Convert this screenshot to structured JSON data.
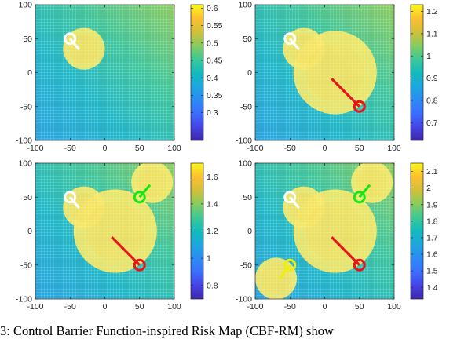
{
  "figure": {
    "caption": "3:  Control Barrier Function-inspired Risk Map (CBF-RM) show"
  },
  "colors": {
    "agent_white": "#ffffff",
    "agent_red": "#e8141b",
    "agent_green": "#19e619",
    "agent_yellow": "#eeee10"
  },
  "chart_data": [
    {
      "type": "heatmap",
      "xlim": [
        -100,
        100
      ],
      "ylim": [
        -100,
        100
      ],
      "xticks": [
        -100,
        -50,
        0,
        50,
        100
      ],
      "yticks": [
        -100,
        -50,
        0,
        50,
        100
      ],
      "colorbar": {
        "min": 0.22,
        "max": 0.61,
        "ticks": [
          0.3,
          0.35,
          0.4,
          0.45,
          0.5,
          0.55,
          0.6
        ]
      },
      "agents": [
        {
          "color": "white",
          "x": -50,
          "y": 50,
          "heading_x": -37,
          "heading_y": 34,
          "influence_x": -30,
          "influence_y": 35,
          "influence_r": 30
        }
      ],
      "grid": true
    },
    {
      "type": "heatmap",
      "xlim": [
        -100,
        100
      ],
      "ylim": [
        -100,
        100
      ],
      "xticks": [
        -100,
        -50,
        0,
        50,
        100
      ],
      "yticks": [
        -100,
        -50,
        0,
        50,
        100
      ],
      "colorbar": {
        "min": 0.62,
        "max": 1.23,
        "ticks": [
          0.7,
          0.8,
          0.9,
          1,
          1.1,
          1.2
        ]
      },
      "agents": [
        {
          "color": "white",
          "x": -50,
          "y": 50,
          "heading_x": -37,
          "heading_y": 34,
          "influence_x": -30,
          "influence_y": 35,
          "influence_r": 30
        },
        {
          "color": "red",
          "x": 50,
          "y": -50,
          "heading_x": 10,
          "heading_y": -9,
          "influence_x": 15,
          "influence_y": 0,
          "influence_r": 60
        }
      ],
      "grid": true
    },
    {
      "type": "heatmap",
      "xlim": [
        -100,
        100
      ],
      "ylim": [
        -100,
        100
      ],
      "xticks": [
        -100,
        -50,
        0,
        50,
        100
      ],
      "yticks": [
        -100,
        -50,
        0,
        50,
        100
      ],
      "colorbar": {
        "min": 0.7,
        "max": 1.7,
        "ticks": [
          0.8,
          1,
          1.2,
          1.4,
          1.6
        ]
      },
      "agents": [
        {
          "color": "white",
          "x": -50,
          "y": 50,
          "heading_x": -37,
          "heading_y": 34,
          "influence_x": -30,
          "influence_y": 35,
          "influence_r": 30
        },
        {
          "color": "red",
          "x": 50,
          "y": -50,
          "heading_x": 10,
          "heading_y": -9,
          "influence_x": 15,
          "influence_y": 0,
          "influence_r": 60
        },
        {
          "color": "green",
          "x": 50,
          "y": 50,
          "heading_x": 65,
          "heading_y": 68,
          "influence_x": 68,
          "influence_y": 72,
          "influence_r": 30
        }
      ],
      "grid": true
    },
    {
      "type": "heatmap",
      "xlim": [
        -100,
        100
      ],
      "ylim": [
        -100,
        100
      ],
      "xticks": [
        -100,
        -50,
        0,
        50,
        100
      ],
      "yticks": [
        -100,
        -50,
        0,
        50,
        100
      ],
      "colorbar": {
        "min": 1.33,
        "max": 2.15,
        "ticks": [
          1.4,
          1.5,
          1.6,
          1.7,
          1.8,
          1.9,
          2,
          2.1
        ]
      },
      "agents": [
        {
          "color": "white",
          "x": -50,
          "y": 50,
          "heading_x": -37,
          "heading_y": 34,
          "influence_x": -30,
          "influence_y": 35,
          "influence_r": 30
        },
        {
          "color": "red",
          "x": 50,
          "y": -50,
          "heading_x": 10,
          "heading_y": -9,
          "influence_x": 15,
          "influence_y": 0,
          "influence_r": 60
        },
        {
          "color": "green",
          "x": 50,
          "y": 50,
          "heading_x": 65,
          "heading_y": 68,
          "influence_x": 68,
          "influence_y": 72,
          "influence_r": 30
        },
        {
          "color": "yellow",
          "x": -50,
          "y": -50,
          "heading_x": -65,
          "heading_y": -70,
          "influence_x": -70,
          "influence_y": -70,
          "influence_r": 30
        }
      ],
      "grid": true
    }
  ]
}
